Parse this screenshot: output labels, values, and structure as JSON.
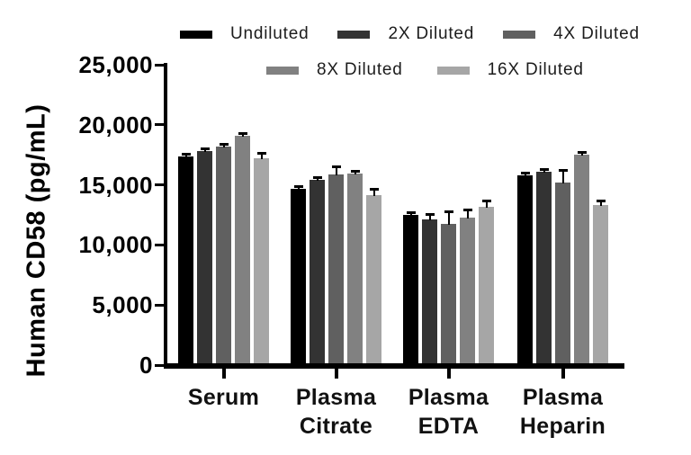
{
  "chart_data": {
    "type": "bar",
    "title": "",
    "xlabel": "",
    "ylabel": "Human CD58 (pg/mL)",
    "ylim": [
      0,
      25000
    ],
    "yticks": [
      0,
      5000,
      10000,
      15000,
      20000,
      25000
    ],
    "ytick_labels": [
      "0",
      "5,000",
      "10,000",
      "15,000",
      "20,000",
      "25,000"
    ],
    "categories": [
      "Serum",
      "Plasma Citrate",
      "Plasma EDTA",
      "Plasma Heparin"
    ],
    "category_label_lines": [
      [
        "Serum"
      ],
      [
        "Plasma",
        "Citrate"
      ],
      [
        "Plasma",
        "EDTA"
      ],
      [
        "Plasma",
        "Heparin"
      ]
    ],
    "grid": false,
    "error_bars": true,
    "legend_position": "top",
    "series": [
      {
        "name": "Undiluted",
        "color": "#000000",
        "values": [
          17400,
          14700,
          12500,
          15800
        ],
        "errors": [
          150,
          150,
          100,
          150
        ]
      },
      {
        "name": "2X Diluted",
        "color": "#333333",
        "values": [
          17800,
          15450,
          12150,
          16100
        ],
        "errors": [
          150,
          150,
          350,
          150
        ]
      },
      {
        "name": "4X Diluted",
        "color": "#606060",
        "values": [
          18200,
          15900,
          11750,
          15200
        ],
        "errors": [
          150,
          550,
          950,
          950
        ]
      },
      {
        "name": "8X Diluted",
        "color": "#818181",
        "values": [
          19100,
          15950,
          12300,
          17550
        ],
        "errors": [
          150,
          150,
          550,
          150
        ]
      },
      {
        "name": "16X Diluted",
        "color": "#a6a6a6",
        "values": [
          17250,
          14150,
          13150,
          13350
        ],
        "errors": [
          350,
          450,
          450,
          250
        ]
      }
    ],
    "legend_rows": [
      [
        0,
        1,
        2
      ],
      [
        3,
        4
      ]
    ]
  }
}
